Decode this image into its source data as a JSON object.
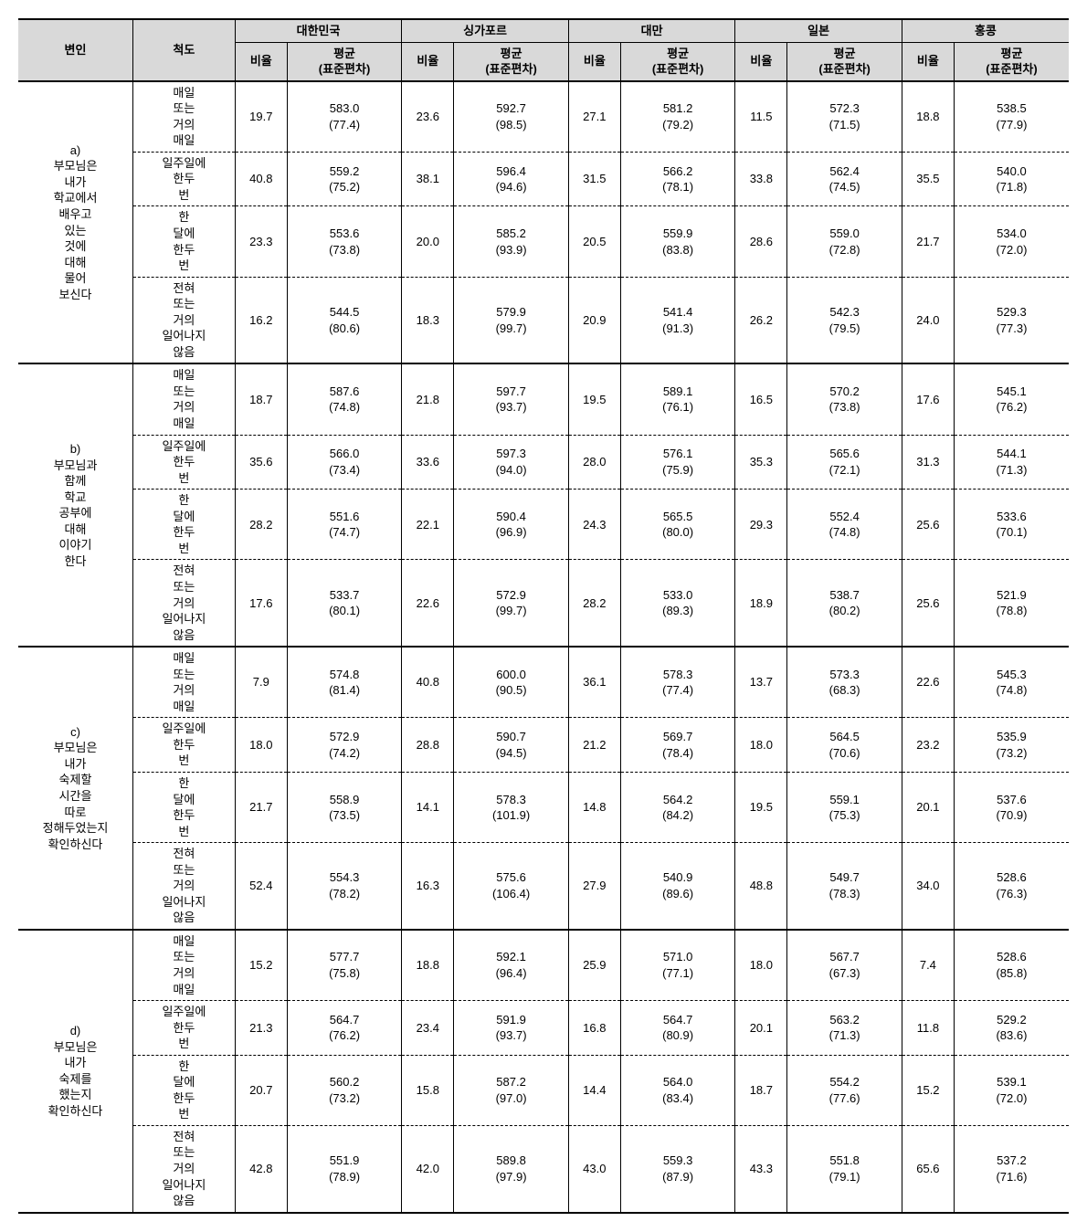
{
  "headers": {
    "variable": "변인",
    "scale": "척도",
    "rate": "비율",
    "mean": "평균",
    "sd": "(표준편차)",
    "countries": [
      "대한민국",
      "싱가포르",
      "대만",
      "일본",
      "홍콩"
    ]
  },
  "scales": [
    "매일 또는 거의 매일",
    "일주일에 한두 번",
    "한 달에 한두 번",
    "전혀 또는 거의 일어나지 않음"
  ],
  "variables": [
    {
      "id": "a",
      "label": "a)",
      "text": "부모님은 내가 학교에서 배우고 있는 것에 대해 물어 보신다"
    },
    {
      "id": "b",
      "label": "b)",
      "text": "부모님과 함께 학교 공부에 대해 이야기 한다"
    },
    {
      "id": "c",
      "label": "c)",
      "text": "부모님은 내가 숙제할 시간을 따로 정해두었는지 확인하신다"
    },
    {
      "id": "d",
      "label": "d)",
      "text": "부모님은 내가 숙제를 했는지 확인하신다"
    }
  ],
  "data": {
    "a": [
      [
        {
          "r": "19.7",
          "m": "583.0",
          "s": "(77.4)"
        },
        {
          "r": "23.6",
          "m": "592.7",
          "s": "(98.5)"
        },
        {
          "r": "27.1",
          "m": "581.2",
          "s": "(79.2)"
        },
        {
          "r": "11.5",
          "m": "572.3",
          "s": "(71.5)"
        },
        {
          "r": "18.8",
          "m": "538.5",
          "s": "(77.9)"
        }
      ],
      [
        {
          "r": "40.8",
          "m": "559.2",
          "s": "(75.2)"
        },
        {
          "r": "38.1",
          "m": "596.4",
          "s": "(94.6)"
        },
        {
          "r": "31.5",
          "m": "566.2",
          "s": "(78.1)"
        },
        {
          "r": "33.8",
          "m": "562.4",
          "s": "(74.5)"
        },
        {
          "r": "35.5",
          "m": "540.0",
          "s": "(71.8)"
        }
      ],
      [
        {
          "r": "23.3",
          "m": "553.6",
          "s": "(73.8)"
        },
        {
          "r": "20.0",
          "m": "585.2",
          "s": "(93.9)"
        },
        {
          "r": "20.5",
          "m": "559.9",
          "s": "(83.8)"
        },
        {
          "r": "28.6",
          "m": "559.0",
          "s": "(72.8)"
        },
        {
          "r": "21.7",
          "m": "534.0",
          "s": "(72.0)"
        }
      ],
      [
        {
          "r": "16.2",
          "m": "544.5",
          "s": "(80.6)"
        },
        {
          "r": "18.3",
          "m": "579.9",
          "s": "(99.7)"
        },
        {
          "r": "20.9",
          "m": "541.4",
          "s": "(91.3)"
        },
        {
          "r": "26.2",
          "m": "542.3",
          "s": "(79.5)"
        },
        {
          "r": "24.0",
          "m": "529.3",
          "s": "(77.3)"
        }
      ]
    ],
    "b": [
      [
        {
          "r": "18.7",
          "m": "587.6",
          "s": "(74.8)"
        },
        {
          "r": "21.8",
          "m": "597.7",
          "s": "(93.7)"
        },
        {
          "r": "19.5",
          "m": "589.1",
          "s": "(76.1)"
        },
        {
          "r": "16.5",
          "m": "570.2",
          "s": "(73.8)"
        },
        {
          "r": "17.6",
          "m": "545.1",
          "s": "(76.2)"
        }
      ],
      [
        {
          "r": "35.6",
          "m": "566.0",
          "s": "(73.4)"
        },
        {
          "r": "33.6",
          "m": "597.3",
          "s": "(94.0)"
        },
        {
          "r": "28.0",
          "m": "576.1",
          "s": "(75.9)"
        },
        {
          "r": "35.3",
          "m": "565.6",
          "s": "(72.1)"
        },
        {
          "r": "31.3",
          "m": "544.1",
          "s": "(71.3)"
        }
      ],
      [
        {
          "r": "28.2",
          "m": "551.6",
          "s": "(74.7)"
        },
        {
          "r": "22.1",
          "m": "590.4",
          "s": "(96.9)"
        },
        {
          "r": "24.3",
          "m": "565.5",
          "s": "(80.0)"
        },
        {
          "r": "29.3",
          "m": "552.4",
          "s": "(74.8)"
        },
        {
          "r": "25.6",
          "m": "533.6",
          "s": "(70.1)"
        }
      ],
      [
        {
          "r": "17.6",
          "m": "533.7",
          "s": "(80.1)"
        },
        {
          "r": "22.6",
          "m": "572.9",
          "s": "(99.7)"
        },
        {
          "r": "28.2",
          "m": "533.0",
          "s": "(89.3)"
        },
        {
          "r": "18.9",
          "m": "538.7",
          "s": "(80.2)"
        },
        {
          "r": "25.6",
          "m": "521.9",
          "s": "(78.8)"
        }
      ]
    ],
    "c": [
      [
        {
          "r": "7.9",
          "m": "574.8",
          "s": "(81.4)"
        },
        {
          "r": "40.8",
          "m": "600.0",
          "s": "(90.5)"
        },
        {
          "r": "36.1",
          "m": "578.3",
          "s": "(77.4)"
        },
        {
          "r": "13.7",
          "m": "573.3",
          "s": "(68.3)"
        },
        {
          "r": "22.6",
          "m": "545.3",
          "s": "(74.8)"
        }
      ],
      [
        {
          "r": "18.0",
          "m": "572.9",
          "s": "(74.2)"
        },
        {
          "r": "28.8",
          "m": "590.7",
          "s": "(94.5)"
        },
        {
          "r": "21.2",
          "m": "569.7",
          "s": "(78.4)"
        },
        {
          "r": "18.0",
          "m": "564.5",
          "s": "(70.6)"
        },
        {
          "r": "23.2",
          "m": "535.9",
          "s": "(73.2)"
        }
      ],
      [
        {
          "r": "21.7",
          "m": "558.9",
          "s": "(73.5)"
        },
        {
          "r": "14.1",
          "m": "578.3",
          "s": "(101.9)"
        },
        {
          "r": "14.8",
          "m": "564.2",
          "s": "(84.2)"
        },
        {
          "r": "19.5",
          "m": "559.1",
          "s": "(75.3)"
        },
        {
          "r": "20.1",
          "m": "537.6",
          "s": "(70.9)"
        }
      ],
      [
        {
          "r": "52.4",
          "m": "554.3",
          "s": "(78.2)"
        },
        {
          "r": "16.3",
          "m": "575.6",
          "s": "(106.4)"
        },
        {
          "r": "27.9",
          "m": "540.9",
          "s": "(89.6)"
        },
        {
          "r": "48.8",
          "m": "549.7",
          "s": "(78.3)"
        },
        {
          "r": "34.0",
          "m": "528.6",
          "s": "(76.3)"
        }
      ]
    ],
    "d": [
      [
        {
          "r": "15.2",
          "m": "577.7",
          "s": "(75.8)"
        },
        {
          "r": "18.8",
          "m": "592.1",
          "s": "(96.4)"
        },
        {
          "r": "25.9",
          "m": "571.0",
          "s": "(77.1)"
        },
        {
          "r": "18.0",
          "m": "567.7",
          "s": "(67.3)"
        },
        {
          "r": "7.4",
          "m": "528.6",
          "s": "(85.8)"
        }
      ],
      [
        {
          "r": "21.3",
          "m": "564.7",
          "s": "(76.2)"
        },
        {
          "r": "23.4",
          "m": "591.9",
          "s": "(93.7)"
        },
        {
          "r": "16.8",
          "m": "564.7",
          "s": "(80.9)"
        },
        {
          "r": "20.1",
          "m": "563.2",
          "s": "(71.3)"
        },
        {
          "r": "11.8",
          "m": "529.2",
          "s": "(83.6)"
        }
      ],
      [
        {
          "r": "20.7",
          "m": "560.2",
          "s": "(73.2)"
        },
        {
          "r": "15.8",
          "m": "587.2",
          "s": "(97.0)"
        },
        {
          "r": "14.4",
          "m": "564.0",
          "s": "(83.4)"
        },
        {
          "r": "18.7",
          "m": "554.2",
          "s": "(77.6)"
        },
        {
          "r": "15.2",
          "m": "539.1",
          "s": "(72.0)"
        }
      ],
      [
        {
          "r": "42.8",
          "m": "551.9",
          "s": "(78.9)"
        },
        {
          "r": "42.0",
          "m": "589.8",
          "s": "(97.9)"
        },
        {
          "r": "43.0",
          "m": "559.3",
          "s": "(87.9)"
        },
        {
          "r": "43.3",
          "m": "551.8",
          "s": "(79.1)"
        },
        {
          "r": "65.6",
          "m": "537.2",
          "s": "(71.6)"
        }
      ]
    ]
  }
}
